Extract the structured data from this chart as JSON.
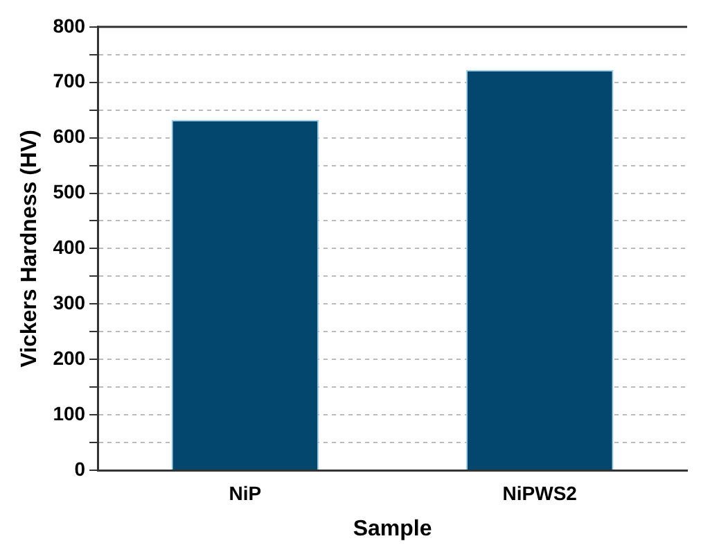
{
  "chart_data": {
    "type": "bar",
    "xlabel": "Sample",
    "ylabel": "Vickers Hardness (HV)",
    "categories": [
      "NiP",
      "NiPWS2"
    ],
    "values": [
      632,
      722
    ],
    "color": "#03466e",
    "ylim": [
      0,
      800
    ],
    "yticks": [
      0,
      {
        "value": 50,
        "label": null
      },
      100,
      {
        "value": 150,
        "label": null
      },
      200,
      {
        "value": 250,
        "label": null
      },
      300,
      {
        "value": 350,
        "label": null
      },
      400,
      {
        "value": 450,
        "label": null
      },
      500,
      {
        "value": 550,
        "label": null
      },
      600,
      {
        "value": 650,
        "label": null
      },
      700,
      {
        "value": 750,
        "label": null
      },
      800
    ],
    "grid": "y",
    "legend": false
  }
}
